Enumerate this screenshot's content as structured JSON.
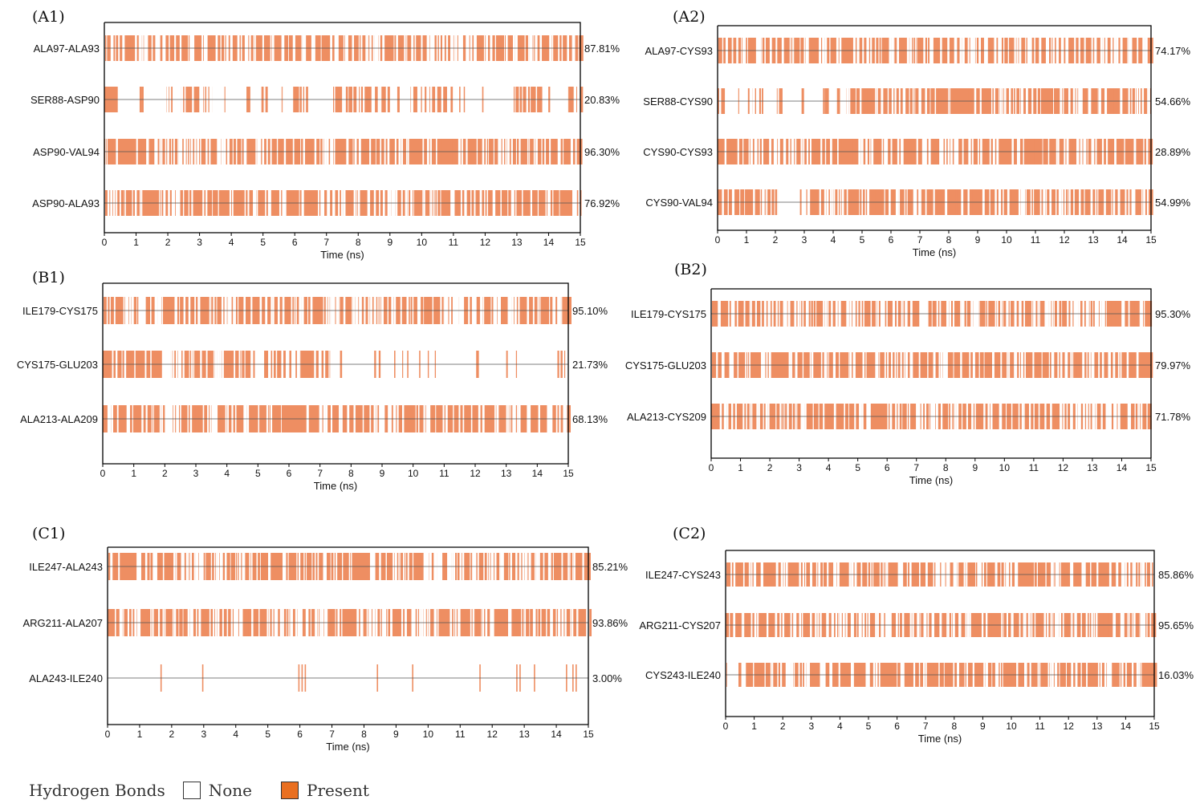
{
  "colors": {
    "present": "#EE8E62",
    "axis": "#000000",
    "center_line": "#555555",
    "legend_present": "#E96F20"
  },
  "legend": {
    "title": "Hydrogen Bonds",
    "none_label": "None",
    "present_label": "Present"
  },
  "chart_data": [
    {
      "type": "heatmap",
      "panel": "(A1)",
      "xlabel": "Time (ns)",
      "xlim": [
        0,
        15
      ],
      "xticks": [
        "0",
        "1",
        "2",
        "3",
        "4",
        "5",
        "6",
        "7",
        "8",
        "9",
        "10",
        "11",
        "12",
        "13",
        "14",
        "15"
      ],
      "series": [
        {
          "name": "ALA97-ALA93",
          "occupancy": "87.81%"
        },
        {
          "name": "SER88-ASP90",
          "occupancy": "20.83%"
        },
        {
          "name": "ASP90-VAL94",
          "occupancy": "96.30%"
        },
        {
          "name": "ASP90-ALA93",
          "occupancy": "76.92%"
        }
      ]
    },
    {
      "type": "heatmap",
      "panel": "(A2)",
      "xlabel": "Time (ns)",
      "xlim": [
        0,
        15
      ],
      "xticks": [
        "0",
        "1",
        "2",
        "3",
        "4",
        "5",
        "6",
        "7",
        "8",
        "9",
        "10",
        "11",
        "12",
        "13",
        "14",
        "15"
      ],
      "series": [
        {
          "name": "ALA97-CYS93",
          "occupancy": "74.17%"
        },
        {
          "name": "SER88-CYS90",
          "occupancy": "54.66%"
        },
        {
          "name": "CYS90-CYS93",
          "occupancy": "28.89%"
        },
        {
          "name": "CYS90-VAL94",
          "occupancy": "54.99%"
        }
      ]
    },
    {
      "type": "heatmap",
      "panel": "(B1)",
      "xlabel": "Time (ns)",
      "xlim": [
        0,
        15
      ],
      "xticks": [
        "0",
        "1",
        "2",
        "3",
        "4",
        "5",
        "6",
        "7",
        "8",
        "9",
        "10",
        "11",
        "12",
        "13",
        "14",
        "15"
      ],
      "series": [
        {
          "name": "ILE179-CYS175",
          "occupancy": "95.10%"
        },
        {
          "name": "CYS175-GLU203",
          "occupancy": "21.73%"
        },
        {
          "name": "ALA213-ALA209",
          "occupancy": "68.13%"
        }
      ]
    },
    {
      "type": "heatmap",
      "panel": "(B2)",
      "xlabel": "Time (ns)",
      "xlim": [
        0,
        15
      ],
      "xticks": [
        "0",
        "1",
        "2",
        "3",
        "4",
        "5",
        "6",
        "7",
        "8",
        "9",
        "10",
        "11",
        "12",
        "13",
        "14",
        "15"
      ],
      "series": [
        {
          "name": "ILE179-CYS175",
          "occupancy": "95.30%"
        },
        {
          "name": "CYS175-GLU203",
          "occupancy": "79.97%"
        },
        {
          "name": "ALA213-CYS209",
          "occupancy": "71.78%"
        }
      ]
    },
    {
      "type": "heatmap",
      "panel": "(C1)",
      "xlabel": "Time (ns)",
      "xlim": [
        0,
        15
      ],
      "xticks": [
        "0",
        "1",
        "2",
        "3",
        "4",
        "5",
        "6",
        "7",
        "8",
        "9",
        "10",
        "11",
        "12",
        "13",
        "14",
        "15"
      ],
      "series": [
        {
          "name": "ILE247-ALA243",
          "occupancy": "85.21%"
        },
        {
          "name": "ARG211-ALA207",
          "occupancy": "93.86%"
        },
        {
          "name": "ALA243-ILE240",
          "occupancy": "3.00%"
        }
      ]
    },
    {
      "type": "heatmap",
      "panel": "(C2)",
      "xlabel": "Time (ns)",
      "xlim": [
        0,
        15
      ],
      "xticks": [
        "0",
        "1",
        "2",
        "3",
        "4",
        "5",
        "6",
        "7",
        "8",
        "9",
        "10",
        "11",
        "12",
        "13",
        "14",
        "15"
      ],
      "series": [
        {
          "name": "ILE247-CYS243",
          "occupancy": "85.86%"
        },
        {
          "name": "ARG211-CYS207",
          "occupancy": "95.65%"
        },
        {
          "name": "CYS243-ILE240",
          "occupancy": "16.03%"
        }
      ]
    }
  ]
}
